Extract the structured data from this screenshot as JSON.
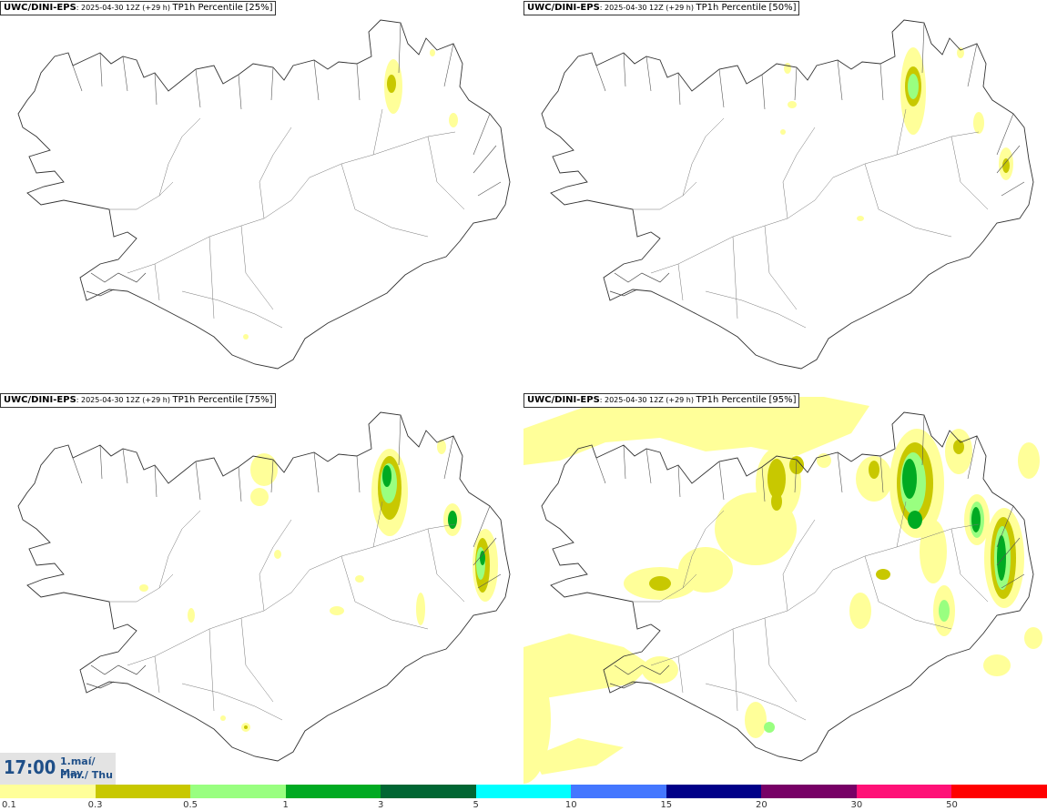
{
  "panels": [
    {
      "model": "UWC/DINI-EPS",
      "run": ": 2025-04-30 12Z (+29 h)",
      "field": "TP1h Percentile",
      "percentile": "[25%]"
    },
    {
      "model": "UWC/DINI-EPS",
      "run": ": 2025-04-30 12Z (+29 h)",
      "field": "TP1h Percentile",
      "percentile": "[50%]"
    },
    {
      "model": "UWC/DINI-EPS",
      "run": ": 2025-04-30 12Z (+29 h)",
      "field": "TP1h Percentile",
      "percentile": "[75%]"
    },
    {
      "model": "UWC/DINI-EPS",
      "run": ": 2025-04-30 12Z (+29 h)",
      "field": "TP1h Percentile",
      "percentile": "[95%]"
    }
  ],
  "timestamp": {
    "time": "17:00",
    "date_line1": "1.maí/ May",
    "date_line2": "Fim./ Thu"
  },
  "legend": {
    "labels": [
      "0.1",
      "0.3",
      "0.5",
      "1",
      "3",
      "5",
      "10",
      "15",
      "20",
      "30",
      "50"
    ],
    "colors": [
      "#ffff99",
      "#c8c800",
      "#99ff80",
      "#00aa22",
      "#006633",
      "#00ffff",
      "#4477ff",
      "#000088",
      "#770066",
      "#ff1177",
      "#ff0000"
    ]
  }
}
